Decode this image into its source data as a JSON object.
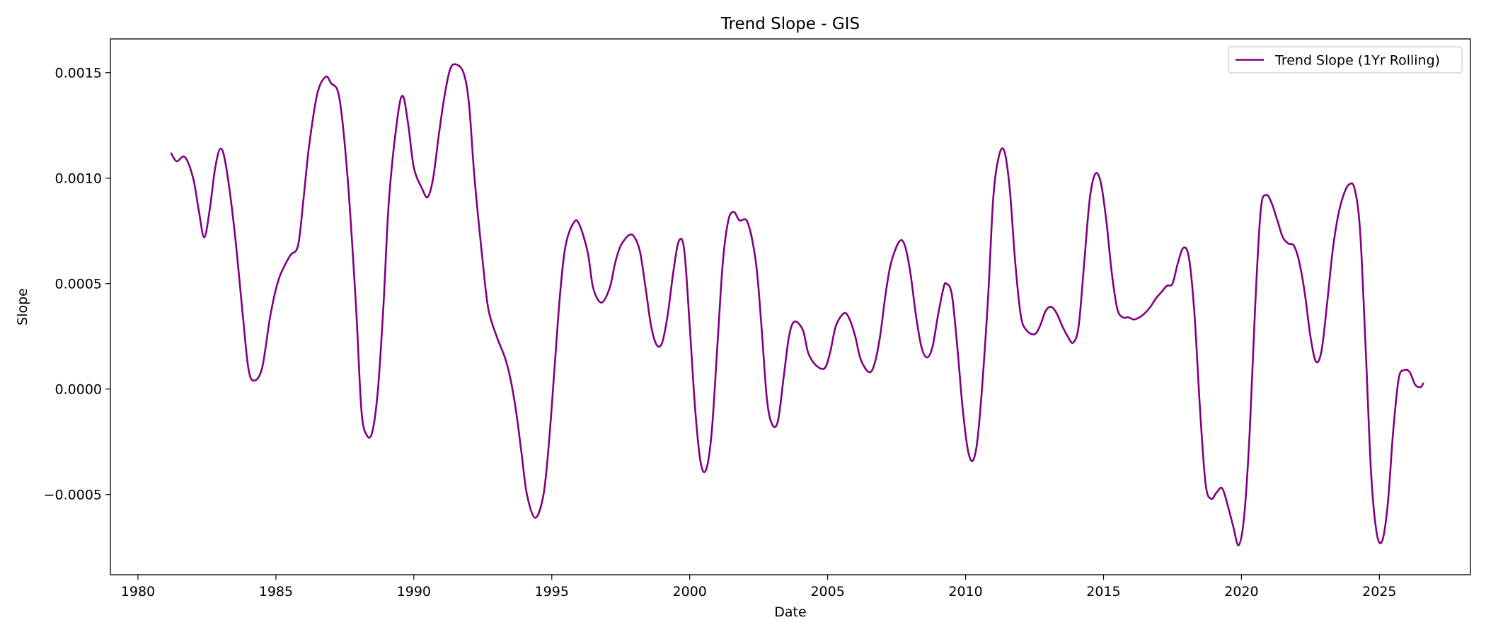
{
  "chart_data": {
    "type": "line",
    "title": "Trend Slope - GIS",
    "xlabel": "Date",
    "ylabel": "Slope",
    "xlim": [
      1979.0,
      2028.3
    ],
    "ylim": [
      -0.00088,
      0.00166
    ],
    "x_ticks": [
      1980,
      1985,
      1990,
      1995,
      2000,
      2005,
      2010,
      2015,
      2020,
      2025
    ],
    "x_tick_labels": [
      "1980",
      "1985",
      "1990",
      "1995",
      "2000",
      "2005",
      "2010",
      "2015",
      "2020",
      "2025"
    ],
    "y_ticks": [
      -0.0005,
      0.0,
      0.0005,
      0.001,
      0.0015
    ],
    "y_tick_labels": [
      "−0.0005",
      "0.0000",
      "0.0005",
      "0.0010",
      "0.0015"
    ],
    "grid": false,
    "legend": {
      "placement": "top-right",
      "entries": [
        "Trend Slope (1Yr Rolling)"
      ]
    },
    "series": [
      {
        "name": "Trend Slope (1Yr Rolling)",
        "color": "#800080",
        "points": [
          [
            1981.2,
            0.00112
          ],
          [
            1981.4,
            0.00108
          ],
          [
            1981.7,
            0.0011
          ],
          [
            1982.0,
            0.001
          ],
          [
            1982.2,
            0.00085
          ],
          [
            1982.4,
            0.00072
          ],
          [
            1982.6,
            0.00085
          ],
          [
            1982.8,
            0.00105
          ],
          [
            1983.0,
            0.00114
          ],
          [
            1983.2,
            0.00105
          ],
          [
            1983.5,
            0.00075
          ],
          [
            1983.8,
            0.00035
          ],
          [
            1984.0,
            0.0001
          ],
          [
            1984.2,
            4e-05
          ],
          [
            1984.5,
            0.0001
          ],
          [
            1984.8,
            0.00035
          ],
          [
            1985.1,
            0.00052
          ],
          [
            1985.5,
            0.00063
          ],
          [
            1985.8,
            0.00068
          ],
          [
            1986.0,
            0.0009
          ],
          [
            1986.2,
            0.00115
          ],
          [
            1986.5,
            0.0014
          ],
          [
            1986.8,
            0.00148
          ],
          [
            1987.0,
            0.00145
          ],
          [
            1987.3,
            0.00138
          ],
          [
            1987.6,
            0.001
          ],
          [
            1987.9,
            0.0004
          ],
          [
            1988.1,
            -0.0001
          ],
          [
            1988.3,
            -0.00022
          ],
          [
            1988.5,
            -0.0002
          ],
          [
            1988.7,
            0.0
          ],
          [
            1988.9,
            0.0004
          ],
          [
            1989.1,
            0.0009
          ],
          [
            1989.4,
            0.00128
          ],
          [
            1989.6,
            0.00139
          ],
          [
            1989.8,
            0.00125
          ],
          [
            1990.0,
            0.00105
          ],
          [
            1990.3,
            0.00095
          ],
          [
            1990.5,
            0.00091
          ],
          [
            1990.7,
            0.001
          ],
          [
            1990.9,
            0.0012
          ],
          [
            1991.1,
            0.00138
          ],
          [
            1991.3,
            0.00151
          ],
          [
            1991.5,
            0.00154
          ],
          [
            1991.8,
            0.0015
          ],
          [
            1992.0,
            0.00135
          ],
          [
            1992.2,
            0.001
          ],
          [
            1992.5,
            0.0006
          ],
          [
            1992.7,
            0.00038
          ],
          [
            1993.0,
            0.00025
          ],
          [
            1993.3,
            0.00015
          ],
          [
            1993.5,
            5e-05
          ],
          [
            1993.7,
            -0.0001
          ],
          [
            1993.9,
            -0.0003
          ],
          [
            1994.1,
            -0.0005
          ],
          [
            1994.4,
            -0.00061
          ],
          [
            1994.7,
            -0.0005
          ],
          [
            1994.9,
            -0.00025
          ],
          [
            1995.1,
            0.0001
          ],
          [
            1995.3,
            0.00045
          ],
          [
            1995.5,
            0.00068
          ],
          [
            1995.8,
            0.00079
          ],
          [
            1996.0,
            0.00078
          ],
          [
            1996.3,
            0.00065
          ],
          [
            1996.5,
            0.00048
          ],
          [
            1996.8,
            0.00041
          ],
          [
            1997.1,
            0.00048
          ],
          [
            1997.3,
            0.0006
          ],
          [
            1997.5,
            0.00068
          ],
          [
            1997.8,
            0.00073
          ],
          [
            1998.0,
            0.00072
          ],
          [
            1998.2,
            0.00065
          ],
          [
            1998.4,
            0.00048
          ],
          [
            1998.6,
            0.0003
          ],
          [
            1998.8,
            0.00021
          ],
          [
            1999.0,
            0.00022
          ],
          [
            1999.2,
            0.00035
          ],
          [
            1999.4,
            0.00055
          ],
          [
            1999.6,
            0.0007
          ],
          [
            1999.8,
            0.00066
          ],
          [
            2000.0,
            0.0003
          ],
          [
            2000.2,
            -0.0001
          ],
          [
            2000.4,
            -0.00035
          ],
          [
            2000.6,
            -0.00038
          ],
          [
            2000.8,
            -0.0002
          ],
          [
            2001.0,
            0.0002
          ],
          [
            2001.2,
            0.0006
          ],
          [
            2001.4,
            0.0008
          ],
          [
            2001.6,
            0.00084
          ],
          [
            2001.8,
            0.0008
          ],
          [
            2002.1,
            0.00079
          ],
          [
            2002.4,
            0.0006
          ],
          [
            2002.6,
            0.0003
          ],
          [
            2002.8,
            -5e-05
          ],
          [
            2003.0,
            -0.00017
          ],
          [
            2003.2,
            -0.00015
          ],
          [
            2003.4,
            5e-05
          ],
          [
            2003.6,
            0.00025
          ],
          [
            2003.8,
            0.00032
          ],
          [
            2004.1,
            0.00028
          ],
          [
            2004.3,
            0.00017
          ],
          [
            2004.6,
            0.00011
          ],
          [
            2004.9,
            0.0001
          ],
          [
            2005.1,
            0.00018
          ],
          [
            2005.3,
            0.0003
          ],
          [
            2005.6,
            0.00036
          ],
          [
            2005.8,
            0.00033
          ],
          [
            2006.0,
            0.00025
          ],
          [
            2006.2,
            0.00014
          ],
          [
            2006.5,
            8e-05
          ],
          [
            2006.7,
            0.00012
          ],
          [
            2006.9,
            0.00025
          ],
          [
            2007.1,
            0.00045
          ],
          [
            2007.3,
            0.0006
          ],
          [
            2007.6,
            0.0007
          ],
          [
            2007.8,
            0.00068
          ],
          [
            2008.0,
            0.00055
          ],
          [
            2008.2,
            0.00035
          ],
          [
            2008.4,
            0.0002
          ],
          [
            2008.6,
            0.00015
          ],
          [
            2008.8,
            0.0002
          ],
          [
            2009.0,
            0.00035
          ],
          [
            2009.2,
            0.00048
          ],
          [
            2009.3,
            0.0005
          ],
          [
            2009.5,
            0.00045
          ],
          [
            2009.7,
            0.0002
          ],
          [
            2009.9,
            -0.0001
          ],
          [
            2010.1,
            -0.0003
          ],
          [
            2010.3,
            -0.00033
          ],
          [
            2010.5,
            -0.00015
          ],
          [
            2010.8,
            0.0004
          ],
          [
            2011.0,
            0.0009
          ],
          [
            2011.2,
            0.0011
          ],
          [
            2011.4,
            0.00113
          ],
          [
            2011.6,
            0.00095
          ],
          [
            2011.8,
            0.0006
          ],
          [
            2012.0,
            0.00035
          ],
          [
            2012.2,
            0.00028
          ],
          [
            2012.5,
            0.00026
          ],
          [
            2012.7,
            0.0003
          ],
          [
            2012.9,
            0.00037
          ],
          [
            2013.1,
            0.00039
          ],
          [
            2013.3,
            0.00036
          ],
          [
            2013.5,
            0.0003
          ],
          [
            2013.7,
            0.00025
          ],
          [
            2013.9,
            0.00022
          ],
          [
            2014.1,
            0.0003
          ],
          [
            2014.3,
            0.0006
          ],
          [
            2014.5,
            0.0009
          ],
          [
            2014.7,
            0.00102
          ],
          [
            2014.9,
            0.00098
          ],
          [
            2015.1,
            0.0008
          ],
          [
            2015.3,
            0.00055
          ],
          [
            2015.5,
            0.00038
          ],
          [
            2015.7,
            0.00034
          ],
          [
            2015.9,
            0.00034
          ],
          [
            2016.1,
            0.00033
          ],
          [
            2016.3,
            0.00034
          ],
          [
            2016.5,
            0.00036
          ],
          [
            2016.7,
            0.00039
          ],
          [
            2016.9,
            0.00043
          ],
          [
            2017.1,
            0.00046
          ],
          [
            2017.3,
            0.00049
          ],
          [
            2017.5,
            0.0005
          ],
          [
            2017.7,
            0.0006
          ],
          [
            2017.9,
            0.00067
          ],
          [
            2018.1,
            0.00062
          ],
          [
            2018.3,
            0.00035
          ],
          [
            2018.5,
            -0.0001
          ],
          [
            2018.7,
            -0.00045
          ],
          [
            2018.9,
            -0.00052
          ],
          [
            2019.1,
            -0.00049
          ],
          [
            2019.3,
            -0.00047
          ],
          [
            2019.5,
            -0.00055
          ],
          [
            2019.7,
            -0.00065
          ],
          [
            2019.9,
            -0.00074
          ],
          [
            2020.1,
            -0.0006
          ],
          [
            2020.3,
            -0.0002
          ],
          [
            2020.5,
            0.0004
          ],
          [
            2020.7,
            0.00085
          ],
          [
            2020.9,
            0.00092
          ],
          [
            2021.1,
            0.00088
          ],
          [
            2021.3,
            0.0008
          ],
          [
            2021.5,
            0.00072
          ],
          [
            2021.7,
            0.00069
          ],
          [
            2021.9,
            0.00068
          ],
          [
            2022.1,
            0.0006
          ],
          [
            2022.3,
            0.00045
          ],
          [
            2022.5,
            0.00025
          ],
          [
            2022.7,
            0.00013
          ],
          [
            2022.9,
            0.00018
          ],
          [
            2023.1,
            0.0004
          ],
          [
            2023.3,
            0.00065
          ],
          [
            2023.5,
            0.00082
          ],
          [
            2023.7,
            0.00092
          ],
          [
            2023.9,
            0.00097
          ],
          [
            2024.1,
            0.00095
          ],
          [
            2024.3,
            0.00075
          ],
          [
            2024.5,
            0.0002
          ],
          [
            2024.7,
            -0.0004
          ],
          [
            2024.9,
            -0.00068
          ],
          [
            2025.1,
            -0.00072
          ],
          [
            2025.3,
            -0.00055
          ],
          [
            2025.5,
            -0.0002
          ],
          [
            2025.7,
            5e-05
          ],
          [
            2025.9,
            9e-05
          ],
          [
            2026.1,
            8e-05
          ],
          [
            2026.3,
            2e-05
          ],
          [
            2026.5,
            1e-05
          ],
          [
            2026.6,
            3e-05
          ]
        ]
      }
    ]
  }
}
